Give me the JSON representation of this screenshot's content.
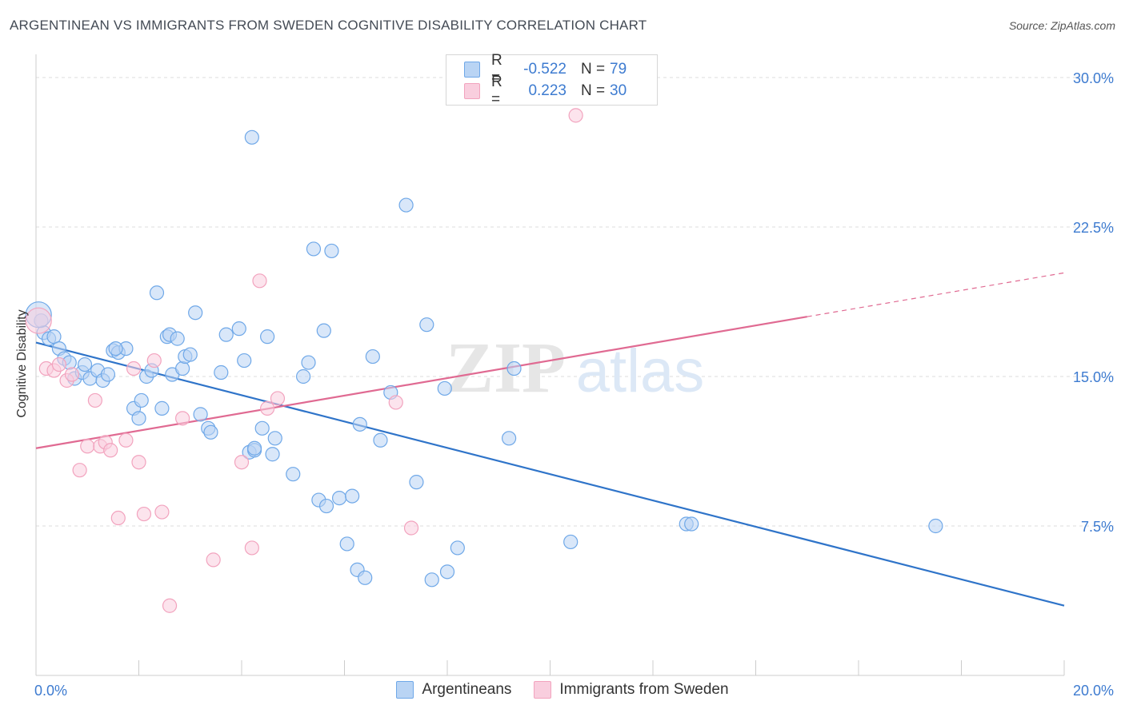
{
  "title": "ARGENTINEAN VS IMMIGRANTS FROM SWEDEN COGNITIVE DISABILITY CORRELATION CHART",
  "source": "Source: ZipAtlas.com",
  "watermark": {
    "zip": "ZIP",
    "atlas": "atlas"
  },
  "legend": {
    "rows": [
      {
        "r_label": "R =",
        "r_value": "-0.522",
        "n_label": "N =",
        "n_value": "79"
      },
      {
        "r_label": "R =",
        "r_value": "0.223",
        "n_label": "N =",
        "n_value": "30"
      }
    ]
  },
  "chart_data": {
    "type": "scatter",
    "ylabel": "Cognitive Disability",
    "xlim": [
      0,
      20
    ],
    "ylim": [
      0,
      30
    ],
    "x_tick_labels": [
      "0.0%",
      "20.0%"
    ],
    "y_tick_labels": [
      "7.5%",
      "15.0%",
      "22.5%",
      "30.0%"
    ],
    "y_ticks": [
      7.5,
      15,
      22.5,
      30
    ],
    "legend_position": "bottom",
    "series": [
      {
        "name": "Argentineans",
        "color": "#6fa8e8",
        "fill": "#b9d4f4",
        "line_color": "#2f74c9",
        "trend": {
          "x": [
            0,
            20
          ],
          "y": [
            16.7,
            3.5
          ]
        },
        "points": [
          [
            0.1,
            17.8
          ],
          [
            0.15,
            17.2
          ],
          [
            0.25,
            16.9
          ],
          [
            0.35,
            17.0
          ],
          [
            0.45,
            16.4
          ],
          [
            0.55,
            15.9
          ],
          [
            0.65,
            15.7
          ],
          [
            0.75,
            14.9
          ],
          [
            0.9,
            15.2
          ],
          [
            0.95,
            15.6
          ],
          [
            1.05,
            14.9
          ],
          [
            1.2,
            15.3
          ],
          [
            1.3,
            14.8
          ],
          [
            1.4,
            15.1
          ],
          [
            1.5,
            16.3
          ],
          [
            1.6,
            16.2
          ],
          [
            1.75,
            16.4
          ],
          [
            1.9,
            13.4
          ],
          [
            2.0,
            12.9
          ],
          [
            2.05,
            13.8
          ],
          [
            2.15,
            15.0
          ],
          [
            2.25,
            15.3
          ],
          [
            2.35,
            19.2
          ],
          [
            2.45,
            13.4
          ],
          [
            2.55,
            17.0
          ],
          [
            2.6,
            17.1
          ],
          [
            2.65,
            15.1
          ],
          [
            2.75,
            16.9
          ],
          [
            2.85,
            15.4
          ],
          [
            2.9,
            16.0
          ],
          [
            3.0,
            16.1
          ],
          [
            3.1,
            18.2
          ],
          [
            3.2,
            13.1
          ],
          [
            3.35,
            12.4
          ],
          [
            3.4,
            12.2
          ],
          [
            3.6,
            15.2
          ],
          [
            3.7,
            17.1
          ],
          [
            3.95,
            17.4
          ],
          [
            4.05,
            15.8
          ],
          [
            4.15,
            11.2
          ],
          [
            4.25,
            11.3
          ],
          [
            4.4,
            12.4
          ],
          [
            4.5,
            17.0
          ],
          [
            4.6,
            11.1
          ],
          [
            4.65,
            11.9
          ],
          [
            4.2,
            27.0
          ],
          [
            5.0,
            10.1
          ],
          [
            5.2,
            15.0
          ],
          [
            5.3,
            15.7
          ],
          [
            5.4,
            21.4
          ],
          [
            5.5,
            8.8
          ],
          [
            5.6,
            17.3
          ],
          [
            5.65,
            8.5
          ],
          [
            5.75,
            21.3
          ],
          [
            5.9,
            8.9
          ],
          [
            6.05,
            6.6
          ],
          [
            6.15,
            9.0
          ],
          [
            6.25,
            5.3
          ],
          [
            6.3,
            12.6
          ],
          [
            6.4,
            4.9
          ],
          [
            6.55,
            16.0
          ],
          [
            6.7,
            11.8
          ],
          [
            6.9,
            14.2
          ],
          [
            7.2,
            23.6
          ],
          [
            7.4,
            9.7
          ],
          [
            7.6,
            17.6
          ],
          [
            7.7,
            4.8
          ],
          [
            7.95,
            14.4
          ],
          [
            8.0,
            5.2
          ],
          [
            8.2,
            6.4
          ],
          [
            9.2,
            11.9
          ],
          [
            9.3,
            15.4
          ],
          [
            10.4,
            6.7
          ],
          [
            12.65,
            7.6
          ],
          [
            12.75,
            7.6
          ],
          [
            17.5,
            7.5
          ],
          [
            4.25,
            11.4
          ],
          [
            0.05,
            18.1
          ],
          [
            1.55,
            16.4
          ]
        ]
      },
      {
        "name": "Immigrants from Sweden",
        "color": "#f2a3be",
        "fill": "#f9cede",
        "line_color": "#e06a92",
        "trend": {
          "x": [
            0,
            15
          ],
          "y": [
            11.4,
            18.0
          ]
        },
        "trend_dashed": {
          "x": [
            15,
            20
          ],
          "y": [
            18.0,
            20.2
          ]
        },
        "points": [
          [
            0.05,
            17.8
          ],
          [
            0.2,
            15.4
          ],
          [
            0.35,
            15.3
          ],
          [
            0.45,
            15.6
          ],
          [
            0.6,
            14.8
          ],
          [
            0.7,
            15.1
          ],
          [
            0.85,
            10.3
          ],
          [
            1.0,
            11.5
          ],
          [
            1.15,
            13.8
          ],
          [
            1.25,
            11.5
          ],
          [
            1.35,
            11.7
          ],
          [
            1.45,
            11.3
          ],
          [
            1.6,
            7.9
          ],
          [
            1.75,
            11.8
          ],
          [
            1.9,
            15.4
          ],
          [
            2.0,
            10.7
          ],
          [
            2.1,
            8.1
          ],
          [
            2.3,
            15.8
          ],
          [
            2.45,
            8.2
          ],
          [
            2.6,
            3.5
          ],
          [
            2.85,
            12.9
          ],
          [
            3.45,
            5.8
          ],
          [
            4.0,
            10.7
          ],
          [
            4.2,
            6.4
          ],
          [
            4.5,
            13.4
          ],
          [
            4.7,
            13.9
          ],
          [
            4.35,
            19.8
          ],
          [
            7.0,
            13.7
          ],
          [
            7.3,
            7.4
          ],
          [
            10.5,
            28.1
          ]
        ]
      }
    ]
  }
}
